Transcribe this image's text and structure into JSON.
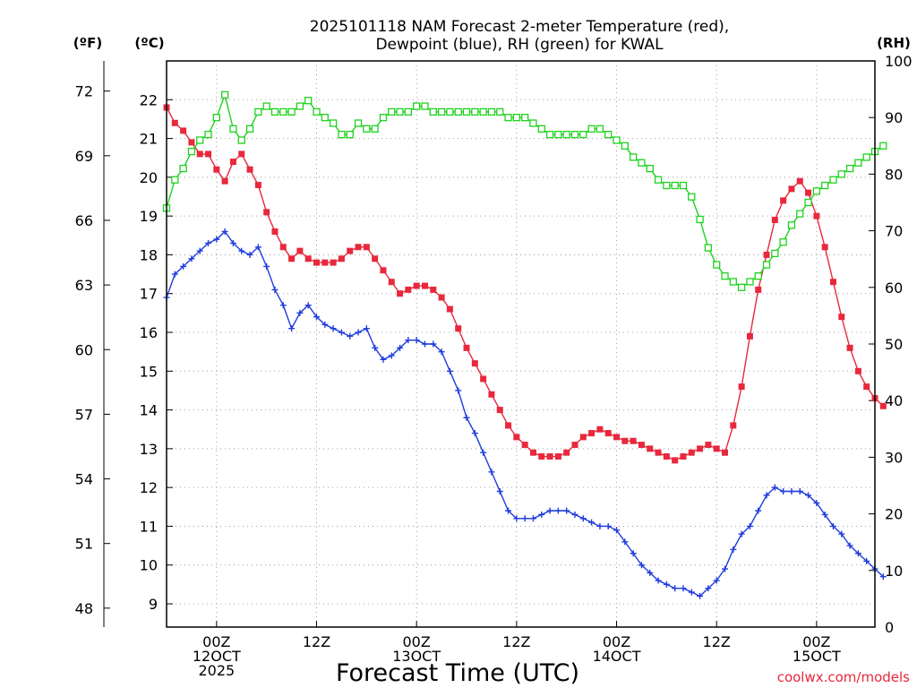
{
  "chart_data": {
    "type": "line",
    "title": "2025101118 NAM Forecast 2-meter Temperature (red),",
    "subtitle": "Dewpoint (blue), RH (green) for KWAL",
    "xlabel": "Forecast Time (UTC)",
    "credit": "coolwx.com/models",
    "axis_labels": {
      "fahrenheit": "(ºF)",
      "celsius": "(ºC)",
      "rh": "(RH)"
    },
    "ylim_c": [
      8.4,
      23.0
    ],
    "ylim_rh": [
      0,
      100
    ],
    "fahrenheit_ticks": [
      "48",
      "51",
      "54",
      "57",
      "60",
      "63",
      "66",
      "69",
      "72"
    ],
    "celsius_ticks": [
      "9",
      "10",
      "11",
      "12",
      "13",
      "14",
      "15",
      "16",
      "17",
      "18",
      "19",
      "20",
      "21",
      "22"
    ],
    "rh_ticks": [
      "0",
      "10",
      "20",
      "30",
      "40",
      "50",
      "60",
      "70",
      "80",
      "90",
      "100"
    ],
    "x_ticks": [
      {
        "hour": 6,
        "lines": [
          "00Z",
          "12OCT",
          "2025"
        ]
      },
      {
        "hour": 18,
        "lines": [
          "12Z"
        ]
      },
      {
        "hour": 30,
        "lines": [
          "00Z",
          "13OCT"
        ]
      },
      {
        "hour": 42,
        "lines": [
          "12Z"
        ]
      },
      {
        "hour": 54,
        "lines": [
          "00Z",
          "14OCT"
        ]
      },
      {
        "hour": 66,
        "lines": [
          "12Z"
        ]
      },
      {
        "hour": 78,
        "lines": [
          "00Z",
          "15OCT"
        ]
      }
    ],
    "x_range_hours": [
      0,
      85
    ],
    "grid": true,
    "series": [
      {
        "name": "Temperature (°C)",
        "color": "#e8283c",
        "marker": "filled-square",
        "values": [
          21.8,
          21.4,
          21.2,
          20.9,
          20.6,
          20.6,
          20.2,
          19.9,
          20.4,
          20.6,
          20.2,
          19.8,
          19.1,
          18.6,
          18.2,
          17.9,
          18.1,
          17.9,
          17.8,
          17.8,
          17.8,
          17.9,
          18.1,
          18.2,
          18.2,
          17.9,
          17.6,
          17.3,
          17.0,
          17.1,
          17.2,
          17.2,
          17.1,
          16.9,
          16.6,
          16.1,
          15.6,
          15.2,
          14.8,
          14.4,
          14.0,
          13.6,
          13.3,
          13.1,
          12.9,
          12.8,
          12.8,
          12.8,
          12.9,
          13.1,
          13.3,
          13.4,
          13.5,
          13.4,
          13.3,
          13.2,
          13.2,
          13.1,
          13.0,
          12.9,
          12.8,
          12.7,
          12.8,
          12.9,
          13.0,
          13.1,
          13.0,
          12.9,
          13.6,
          14.6,
          15.9,
          17.1,
          18.0,
          18.9,
          19.4,
          19.7,
          19.9,
          19.6,
          19.0,
          18.2,
          17.3,
          16.4,
          15.6,
          15.0,
          14.6,
          14.3,
          14.1
        ]
      },
      {
        "name": "Dewpoint (°C)",
        "color": "#1e3cdc",
        "marker": "plus",
        "values": [
          16.9,
          17.5,
          17.7,
          17.9,
          18.1,
          18.3,
          18.4,
          18.6,
          18.3,
          18.1,
          18.0,
          18.2,
          17.7,
          17.1,
          16.7,
          16.1,
          16.5,
          16.7,
          16.4,
          16.2,
          16.1,
          16.0,
          15.9,
          16.0,
          16.1,
          15.6,
          15.3,
          15.4,
          15.6,
          15.8,
          15.8,
          15.7,
          15.7,
          15.5,
          15.0,
          14.5,
          13.8,
          13.4,
          12.9,
          12.4,
          11.9,
          11.4,
          11.2,
          11.2,
          11.2,
          11.3,
          11.4,
          11.4,
          11.4,
          11.3,
          11.2,
          11.1,
          11.0,
          11.0,
          10.9,
          10.6,
          10.3,
          10.0,
          9.8,
          9.6,
          9.5,
          9.4,
          9.4,
          9.3,
          9.2,
          9.4,
          9.6,
          9.9,
          10.4,
          10.8,
          11.0,
          11.4,
          11.8,
          12.0,
          11.9,
          11.9,
          11.9,
          11.8,
          11.6,
          11.3,
          11.0,
          10.8,
          10.5,
          10.3,
          10.1,
          9.9,
          9.7
        ]
      },
      {
        "name": "RH (%)",
        "color": "#1ed21e",
        "marker": "open-square",
        "values": [
          74,
          79,
          81,
          84,
          86,
          87,
          90,
          94,
          88,
          86,
          88,
          91,
          92,
          91,
          91,
          91,
          92,
          93,
          91,
          90,
          89,
          87,
          87,
          89,
          88,
          88,
          90,
          91,
          91,
          91,
          92,
          92,
          91,
          91,
          91,
          91,
          91,
          91,
          91,
          91,
          91,
          90,
          90,
          90,
          89,
          88,
          87,
          87,
          87,
          87,
          87,
          88,
          88,
          87,
          86,
          85,
          83,
          82,
          81,
          79,
          78,
          78,
          78,
          76,
          72,
          67,
          64,
          62,
          61,
          60,
          61,
          62,
          64,
          66,
          68,
          71,
          73,
          75,
          77,
          78,
          79,
          80,
          81,
          82,
          83,
          84,
          85
        ]
      }
    ]
  }
}
